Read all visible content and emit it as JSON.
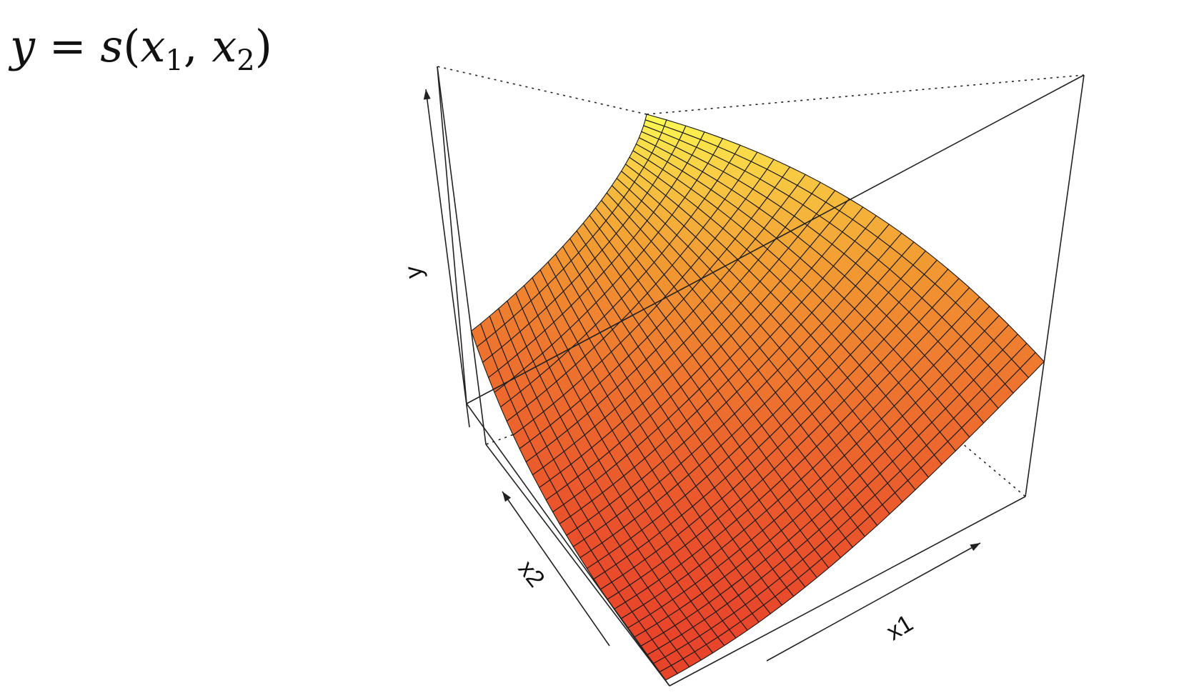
{
  "equation": {
    "lhs": "y",
    "eq": "=",
    "func": "s",
    "open": "(",
    "arg1": "x",
    "sub1": "1",
    "comma": ",",
    "arg2": "x",
    "sub2": "2",
    "close": ")"
  },
  "chart_data": {
    "type": "surface",
    "axes": {
      "x": "x1",
      "y": "x2",
      "z": "y"
    },
    "grid": {
      "x_steps": 30,
      "y_steps": 30
    },
    "surface": "y = s(x1, x2), convex in x1 and x2: lowest at the near corner (x1 low, x2 low), highest at the far corner",
    "colors": {
      "low": "#e8402a",
      "mid": "#f29a32",
      "high": "#ffff55",
      "mesh": "#1a1a1a",
      "box": "#222222"
    },
    "box": true,
    "ticks": false
  }
}
